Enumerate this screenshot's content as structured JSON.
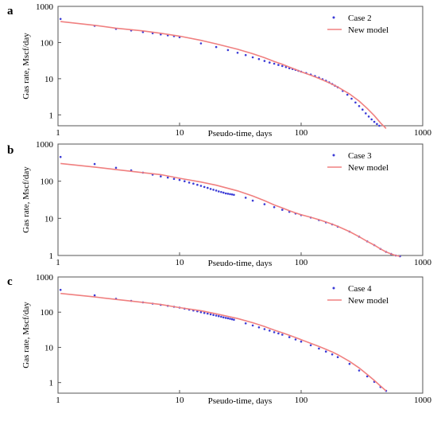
{
  "chart_data": [
    {
      "panel": "a",
      "type": "scatter",
      "xlabel": "Pseudo-time, days",
      "ylabel": "Gas rate, Mscf/day",
      "x_scale": "log",
      "y_scale": "log",
      "xlim": [
        1,
        1000
      ],
      "ylim": [
        0.5,
        1000
      ],
      "x_ticks": [
        "1",
        "10",
        "100",
        "1000"
      ],
      "y_ticks": [
        "1",
        "10",
        "100",
        "1000"
      ],
      "legend_position": "top-right",
      "series": [
        {
          "name": "Case 2",
          "style": "points",
          "color": "#3b3bd6",
          "x": [
            1.05,
            2,
            3,
            4,
            5,
            6,
            7,
            8,
            9,
            10,
            15,
            20,
            25,
            30,
            35,
            40,
            45,
            50,
            55,
            60,
            65,
            70,
            75,
            80,
            85,
            90,
            95,
            100,
            110,
            120,
            130,
            140,
            150,
            160,
            170,
            180,
            190,
            200,
            220,
            240,
            260,
            280,
            300,
            320,
            340,
            360,
            380,
            400,
            420,
            440,
            460,
            480,
            500
          ],
          "y": [
            450,
            290,
            240,
            215,
            195,
            180,
            168,
            158,
            150,
            140,
            95,
            75,
            62,
            52,
            45,
            39,
            35,
            31,
            28,
            26,
            24,
            22.5,
            21,
            19.5,
            18.5,
            17.5,
            16.5,
            15.7,
            14.3,
            13,
            11.8,
            10.7,
            9.7,
            8.8,
            7.9,
            7.1,
            6.4,
            5.8,
            4.6,
            3.6,
            2.8,
            2.2,
            1.75,
            1.4,
            1.1,
            0.9,
            0.75,
            0.64,
            0.56,
            0.5,
            0.46,
            0.43,
            0.4
          ]
        },
        {
          "name": "New model",
          "style": "line",
          "color": "#f08080",
          "x": [
            1.05,
            2,
            3,
            5,
            7,
            10,
            15,
            20,
            30,
            40,
            50,
            60,
            70,
            80,
            90,
            100,
            120,
            140,
            160,
            180,
            200,
            250,
            300,
            350,
            400,
            450,
            500
          ],
          "y": [
            380,
            300,
            250,
            210,
            180,
            150,
            115,
            92,
            65,
            49,
            38,
            30,
            25,
            21,
            18,
            15.5,
            12.5,
            10.2,
            8.4,
            7,
            5.9,
            3.8,
            2.4,
            1.5,
            0.95,
            0.6,
            0.42
          ]
        }
      ]
    },
    {
      "panel": "b",
      "type": "scatter",
      "xlabel": "Pseudo-time, days",
      "ylabel": "Gas rate, Mscf/day",
      "x_scale": "log",
      "y_scale": "log",
      "xlim": [
        1,
        1000
      ],
      "ylim": [
        1,
        1000
      ],
      "x_ticks": [
        "1",
        "10",
        "100",
        "1000"
      ],
      "y_ticks": [
        "1",
        "10",
        "100",
        "1000"
      ],
      "legend_position": "top-right",
      "series": [
        {
          "name": "Case 3",
          "style": "points",
          "color": "#3b3bd6",
          "x": [
            1.05,
            2,
            3,
            4,
            5,
            6,
            7,
            8,
            9,
            10,
            11,
            12,
            13,
            14,
            15,
            16,
            17,
            18,
            19,
            20,
            21,
            22,
            23,
            24,
            25,
            26,
            27,
            28,
            35,
            40,
            50,
            60,
            70,
            80,
            90,
            100,
            120,
            140,
            160,
            180,
            200,
            250,
            300,
            350,
            400,
            450,
            500,
            550,
            600,
            650
          ],
          "y": [
            450,
            290,
            230,
            195,
            170,
            150,
            135,
            125,
            115,
            108,
            100,
            92,
            86,
            80,
            75,
            70,
            66,
            62,
            59,
            56,
            53,
            51,
            49,
            47,
            46,
            45,
            44,
            43,
            36,
            30,
            24,
            20,
            17,
            15,
            13.5,
            12.2,
            10.5,
            9,
            7.8,
            6.9,
            6,
            4.4,
            3.2,
            2.4,
            1.9,
            1.5,
            1.25,
            1.1,
            1,
            0.95
          ]
        },
        {
          "name": "New model",
          "style": "line",
          "color": "#f08080",
          "x": [
            1.05,
            2,
            3,
            5,
            7,
            10,
            15,
            20,
            30,
            40,
            50,
            60,
            70,
            80,
            90,
            100,
            120,
            140,
            160,
            180,
            200,
            250,
            300,
            350,
            400,
            450,
            500,
            550,
            600,
            650
          ],
          "y": [
            300,
            240,
            205,
            170,
            150,
            120,
            95,
            78,
            55,
            40,
            30,
            23,
            19,
            16,
            14,
            12.5,
            10.7,
            9.2,
            8,
            7,
            6.1,
            4.4,
            3.2,
            2.4,
            1.9,
            1.5,
            1.25,
            1.1,
            1,
            0.95
          ]
        }
      ]
    },
    {
      "panel": "c",
      "type": "scatter",
      "xlabel": "Pseudo-time, days",
      "ylabel": "Gas rate, Mscf/day",
      "x_scale": "log",
      "y_scale": "log",
      "xlim": [
        1,
        1000
      ],
      "ylim": [
        0.5,
        1000
      ],
      "x_ticks": [
        "1",
        "10",
        "100",
        "1000"
      ],
      "y_ticks": [
        "1",
        "10",
        "100",
        "1000"
      ],
      "legend_position": "top-right",
      "series": [
        {
          "name": "Case 4",
          "style": "points",
          "color": "#3b3bd6",
          "x": [
            1.05,
            2,
            3,
            4,
            5,
            6,
            7,
            8,
            9,
            10,
            11,
            12,
            13,
            14,
            15,
            16,
            17,
            18,
            19,
            20,
            21,
            22,
            23,
            24,
            25,
            26,
            27,
            28,
            35,
            40,
            45,
            50,
            55,
            60,
            65,
            70,
            80,
            90,
            100,
            120,
            140,
            160,
            180,
            200,
            250,
            300,
            350,
            400,
            450,
            500
          ],
          "y": [
            430,
            300,
            240,
            210,
            190,
            175,
            162,
            152,
            143,
            135,
            126,
            118,
            112,
            106,
            100,
            95,
            91,
            87,
            83,
            80,
            77,
            74,
            71,
            69,
            67,
            65,
            63,
            61,
            48,
            42,
            37,
            33,
            30,
            27,
            25,
            23,
            19.5,
            16.8,
            14.6,
            11.5,
            9.3,
            7.6,
            6.3,
            5.3,
            3.4,
            2.2,
            1.5,
            1.05,
            0.75,
            0.58
          ]
        },
        {
          "name": "New model",
          "style": "line",
          "color": "#f08080",
          "x": [
            1.05,
            2,
            3,
            5,
            7,
            10,
            15,
            20,
            30,
            40,
            50,
            60,
            70,
            80,
            90,
            100,
            120,
            140,
            160,
            180,
            200,
            250,
            300,
            350,
            400,
            450,
            500
          ],
          "y": [
            340,
            270,
            230,
            190,
            165,
            135,
            110,
            90,
            66,
            50,
            39,
            31,
            26,
            22,
            19,
            16.5,
            13,
            10.6,
            8.8,
            7.4,
            6.2,
            4,
            2.6,
            1.7,
            1.15,
            0.8,
            0.58
          ]
        }
      ]
    }
  ]
}
